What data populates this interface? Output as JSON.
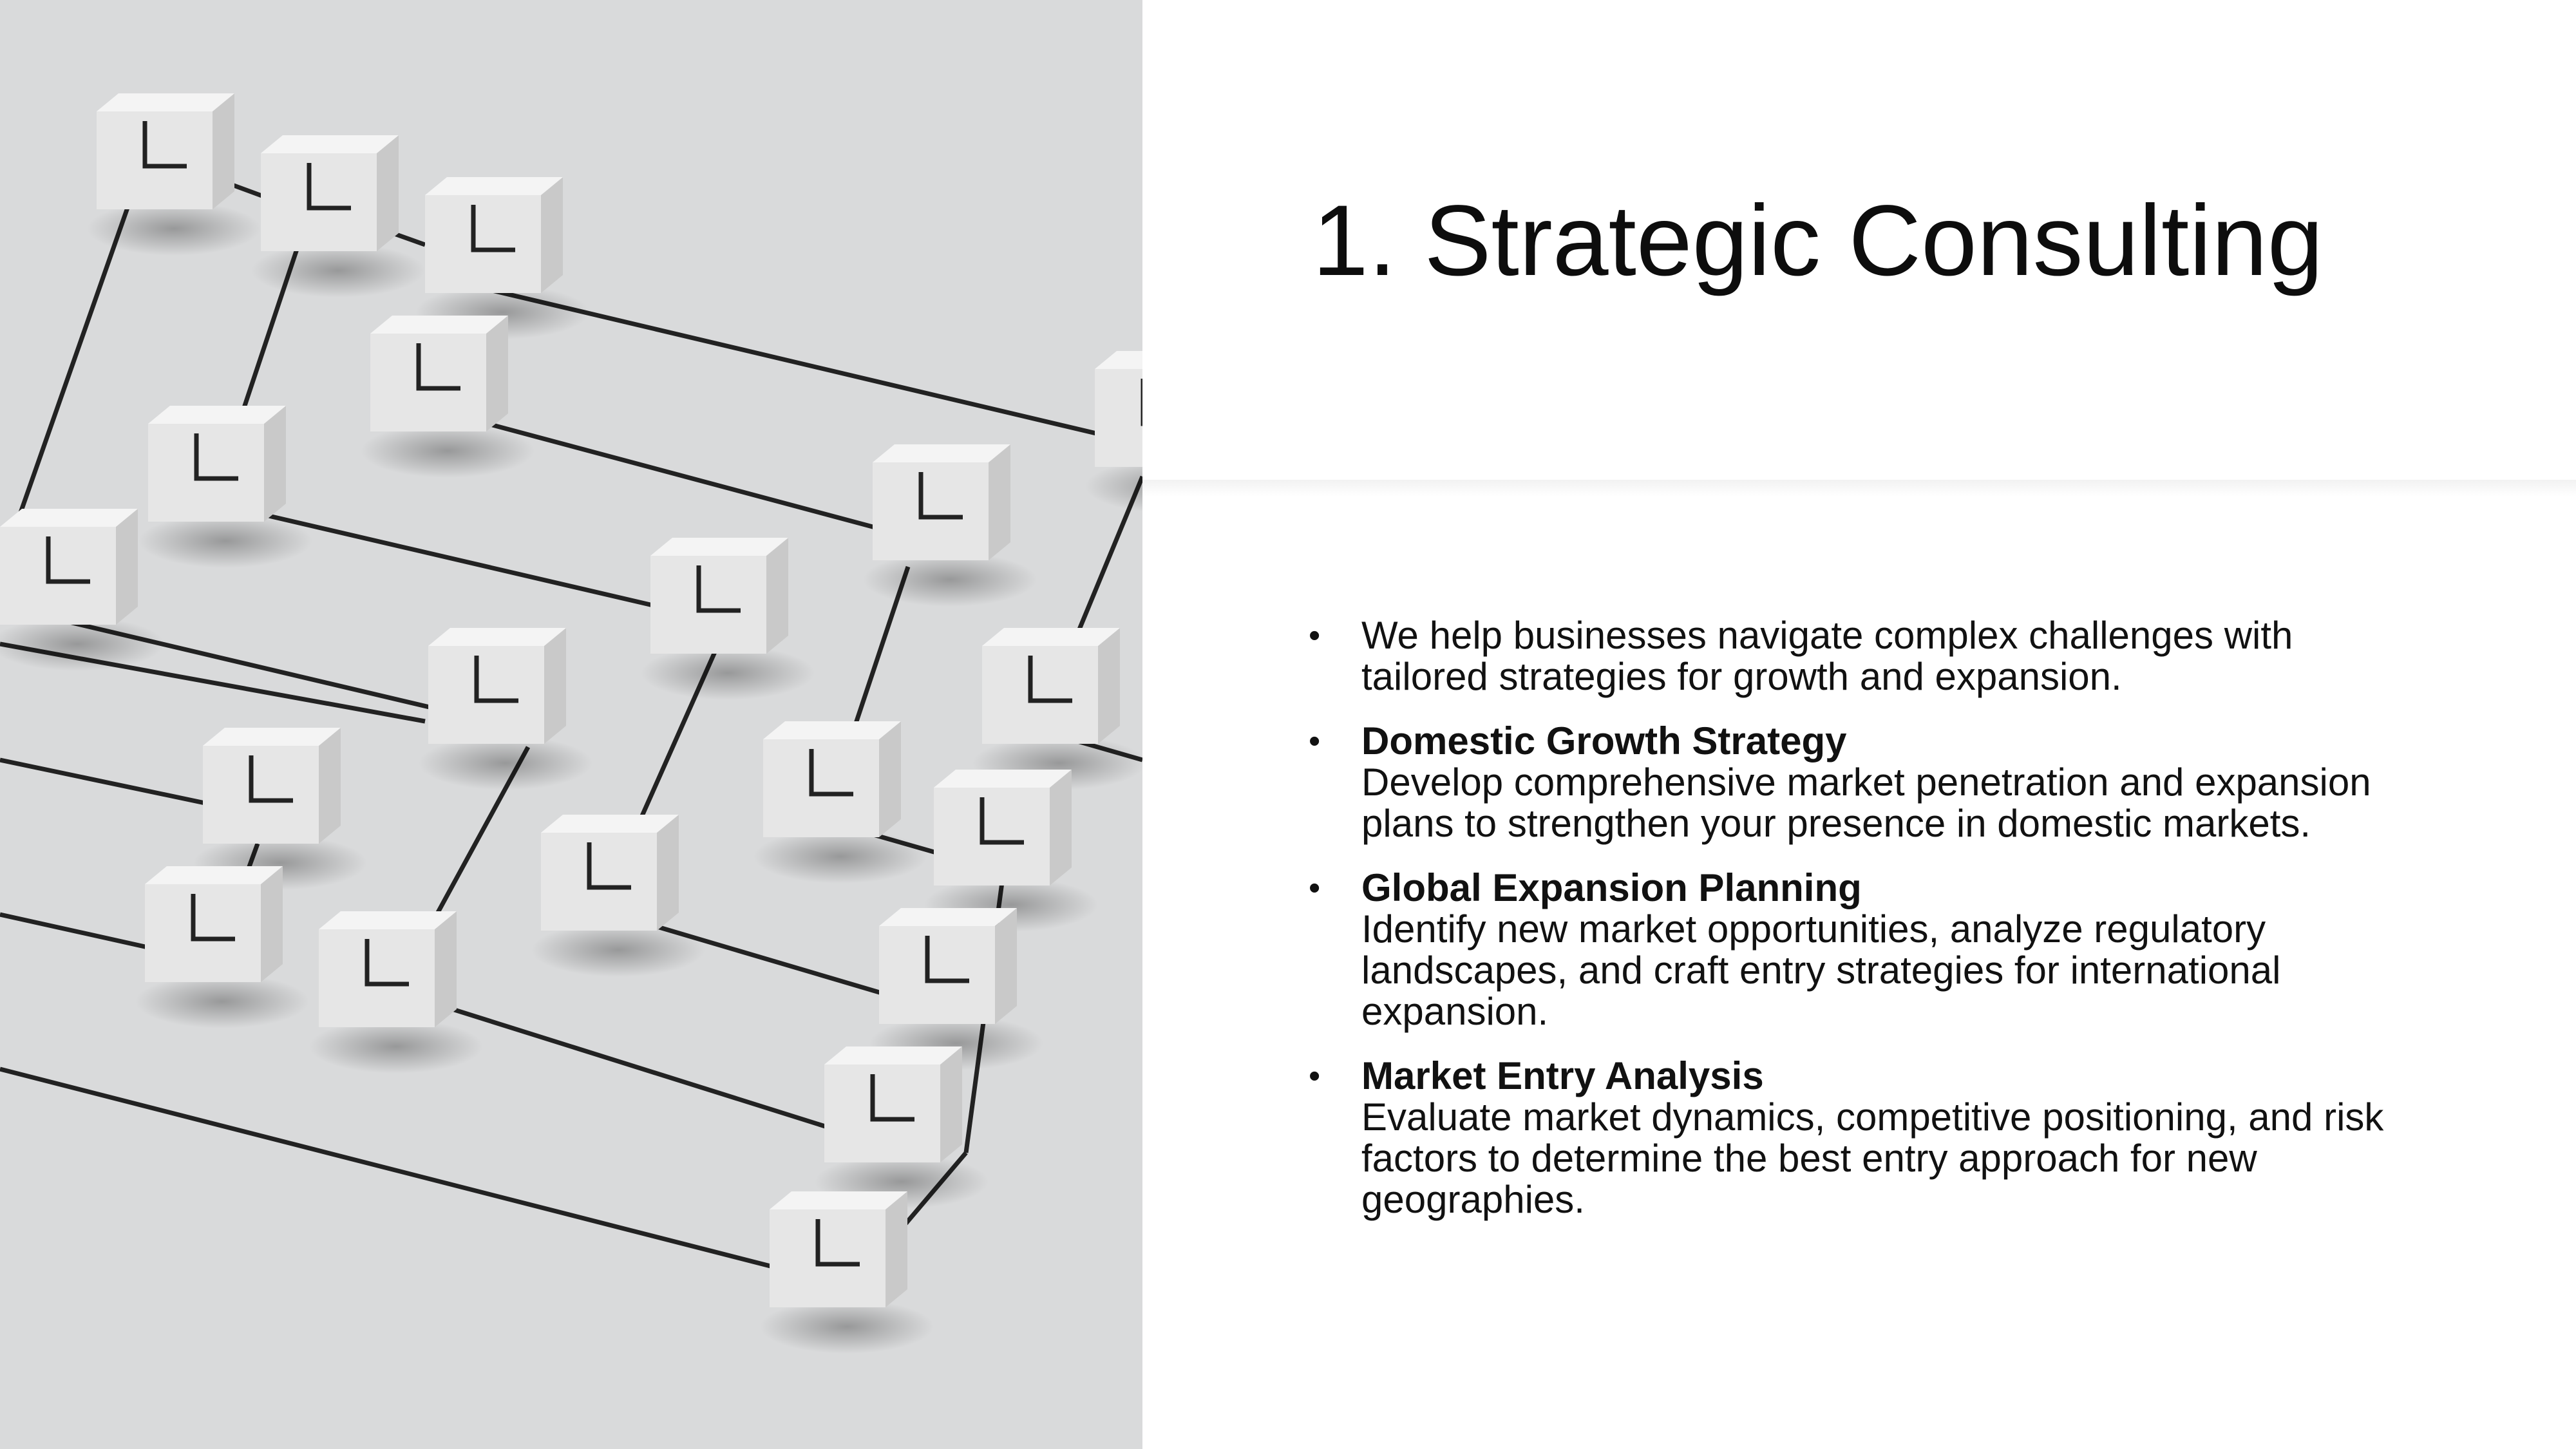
{
  "slide": {
    "title": "1. Strategic Consulting",
    "bullets": [
      {
        "heading": "",
        "text": "We help businesses navigate complex challenges with tailored strategies for growth and expansion."
      },
      {
        "heading": "Domestic Growth Strategy",
        "text": "Develop comprehensive market penetration and expansion plans to strengthen your presence in domestic markets."
      },
      {
        "heading": "Global Expansion Planning",
        "text": "Identify new market opportunities, analyze regulatory landscapes, and craft entry strategies for international expansion."
      },
      {
        "heading": "Market Entry Analysis",
        "text": "Evaluate market dynamics, competitive positioning, and risk factors to determine the best entry approach for new geographies."
      }
    ],
    "bullet_glyph": "•"
  },
  "image": {
    "subject": "network of white cubes connected by black lines",
    "background_color": "#d9dadb",
    "cube_color": "#f4f4f4",
    "line_color": "#222222"
  }
}
